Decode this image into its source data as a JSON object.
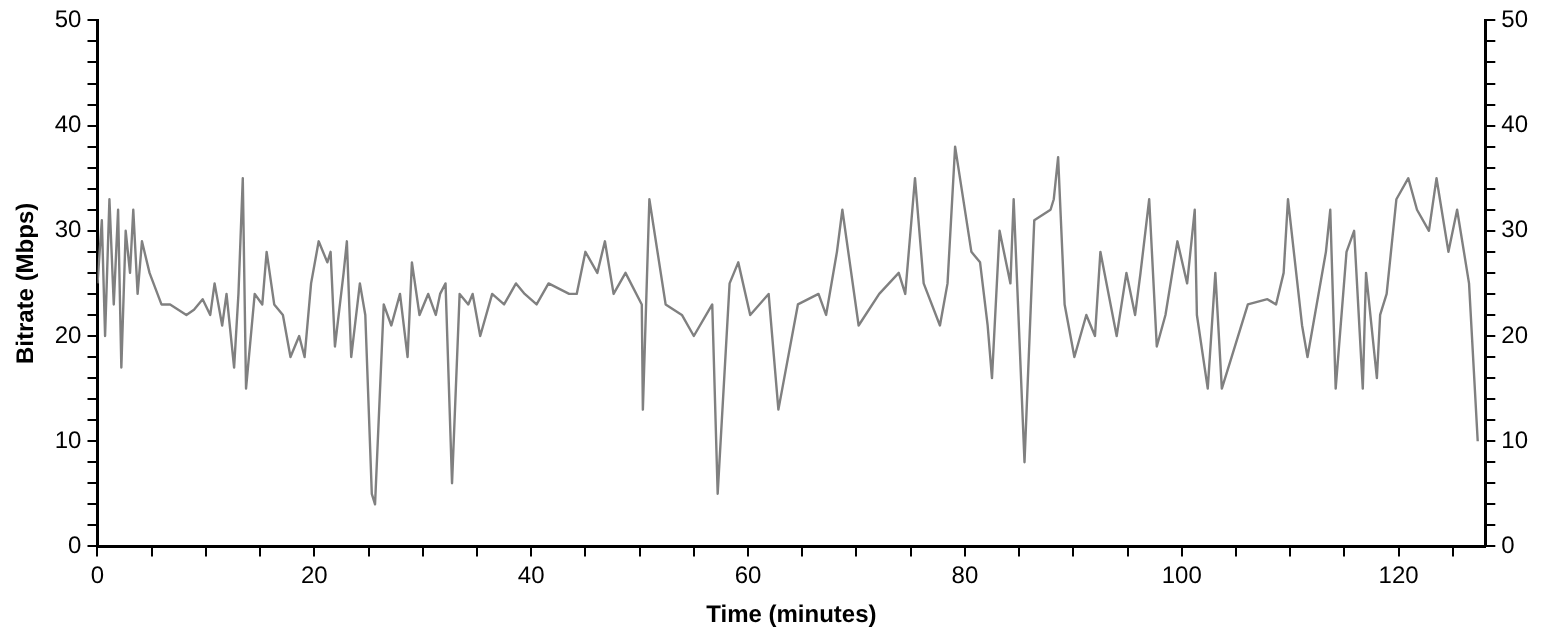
{
  "chart_data": {
    "type": "line",
    "xlabel": "Time (minutes)",
    "ylabel": "Bitrate (Mbps)",
    "marker": "none",
    "grid": false,
    "legend": false,
    "xlim": [
      0,
      128
    ],
    "ylim": [
      0,
      50
    ],
    "y2lim": [
      0,
      50
    ],
    "xticks": [
      0,
      {
        "value": 5,
        "label": null
      },
      {
        "value": 10,
        "label": null
      },
      {
        "value": 15,
        "label": null
      },
      20,
      {
        "value": 25,
        "label": null
      },
      {
        "value": 30,
        "label": null
      },
      {
        "value": 35,
        "label": null
      },
      40,
      {
        "value": 45,
        "label": null
      },
      {
        "value": 50,
        "label": null
      },
      {
        "value": 55,
        "label": null
      },
      60,
      {
        "value": 65,
        "label": null
      },
      {
        "value": 70,
        "label": null
      },
      {
        "value": 75,
        "label": null
      },
      80,
      {
        "value": 85,
        "label": null
      },
      {
        "value": 90,
        "label": null
      },
      {
        "value": 95,
        "label": null
      },
      100,
      {
        "value": 105,
        "label": null
      },
      {
        "value": 110,
        "label": null
      },
      {
        "value": 115,
        "label": null
      },
      120,
      {
        "value": 125,
        "label": null
      }
    ],
    "yticks": [
      0,
      {
        "value": 2,
        "label": null
      },
      {
        "value": 4,
        "label": null
      },
      {
        "value": 6,
        "label": null
      },
      {
        "value": 8,
        "label": null
      },
      10,
      {
        "value": 12,
        "label": null
      },
      {
        "value": 14,
        "label": null
      },
      {
        "value": 16,
        "label": null
      },
      {
        "value": 18,
        "label": null
      },
      20,
      {
        "value": 22,
        "label": null
      },
      {
        "value": 24,
        "label": null
      },
      {
        "value": 26,
        "label": null
      },
      {
        "value": 28,
        "label": null
      },
      30,
      {
        "value": 32,
        "label": null
      },
      {
        "value": 34,
        "label": null
      },
      {
        "value": 36,
        "label": null
      },
      {
        "value": 38,
        "label": null
      },
      40,
      {
        "value": 42,
        "label": null
      },
      {
        "value": 44,
        "label": null
      },
      {
        "value": 46,
        "label": null
      },
      {
        "value": 48,
        "label": null
      },
      50
    ],
    "y2ticks": [
      0,
      {
        "value": 2,
        "label": null
      },
      {
        "value": 4,
        "label": null
      },
      {
        "value": 6,
        "label": null
      },
      {
        "value": 8,
        "label": null
      },
      10,
      {
        "value": 12,
        "label": null
      },
      {
        "value": 14,
        "label": null
      },
      {
        "value": 16,
        "label": null
      },
      {
        "value": 18,
        "label": null
      },
      20,
      {
        "value": 22,
        "label": null
      },
      {
        "value": 24,
        "label": null
      },
      {
        "value": 26,
        "label": null
      },
      {
        "value": 28,
        "label": null
      },
      30,
      {
        "value": 32,
        "label": null
      },
      {
        "value": 34,
        "label": null
      },
      {
        "value": 36,
        "label": null
      },
      {
        "value": 38,
        "label": null
      },
      40,
      {
        "value": 42,
        "label": null
      },
      {
        "value": 44,
        "label": null
      },
      {
        "value": 46,
        "label": null
      },
      {
        "value": 48,
        "label": null
      },
      50
    ],
    "series": [
      {
        "color": "#808080",
        "x": [
          0,
          0.4,
          0.7,
          1.1,
          1.5,
          1.9,
          2.2,
          2.6,
          3.0,
          3.3,
          3.7,
          4.1,
          4.8,
          5.9,
          6.7,
          8.2,
          8.9,
          9.7,
          10.4,
          10.8,
          11.5,
          11.9,
          12.6,
          13.0,
          13.4,
          13.7,
          14.5,
          15.2,
          15.6,
          16.3,
          17.1,
          17.8,
          18.6,
          19.1,
          19.7,
          20.4,
          21.2,
          21.5,
          21.9,
          22.7,
          23.0,
          23.4,
          24.2,
          24.7,
          25.3,
          25.6,
          26.4,
          27.1,
          27.9,
          28.6,
          29.0,
          29.7,
          30.5,
          31.2,
          31.6,
          32.1,
          32.7,
          33.4,
          34.2,
          34.6,
          35.3,
          36.4,
          37.5,
          38.6,
          39.4,
          40.5,
          41.6,
          43.5,
          44.2,
          45.0,
          46.1,
          46.8,
          47.6,
          48.7,
          50.2,
          50.3,
          50.9,
          52.4,
          53.9,
          55.0,
          56.7,
          57.2,
          58.3,
          59.1,
          60.2,
          61.9,
          62.8,
          64.6,
          66.5,
          67.2,
          68.2,
          68.7,
          70.2,
          72.1,
          73.9,
          74.5,
          75.4,
          76.2,
          77.7,
          78.4,
          79.1,
          80.6,
          81.4,
          82.1,
          82.5,
          83.2,
          84.2,
          84.5,
          84.9,
          85.5,
          86.4,
          87.9,
          88.2,
          88.6,
          89.2,
          90.1,
          91.2,
          92.0,
          92.5,
          94.0,
          94.9,
          95.7,
          96.2,
          97.0,
          97.7,
          98.5,
          99.6,
          100.5,
          101.2,
          101.4,
          102.4,
          103.1,
          103.7,
          104.6,
          106.1,
          107.9,
          108.7,
          109.4,
          109.8,
          111.1,
          111.6,
          113.3,
          113.7,
          114.2,
          115.2,
          115.9,
          116.7,
          117.0,
          118.0,
          118.3,
          118.9,
          119.8,
          120.9,
          121.7,
          122.8,
          123.5,
          124.6,
          125.4,
          126.5,
          127.3
        ],
        "values": [
          25,
          31,
          20,
          33,
          23,
          32,
          17,
          30,
          26,
          32,
          24,
          29,
          26,
          23,
          23,
          22,
          22.5,
          23.5,
          22,
          25,
          21,
          24,
          17,
          24,
          35,
          15,
          24,
          23,
          28,
          23,
          22,
          18,
          20,
          18,
          25,
          29,
          27,
          28,
          19,
          26,
          29,
          18,
          25,
          22,
          5,
          4,
          23,
          21,
          24,
          18,
          27,
          22,
          24,
          22,
          24,
          25,
          6,
          24,
          23,
          24,
          20,
          24,
          23,
          25,
          24,
          23,
          25,
          24,
          24,
          28,
          26,
          29,
          24,
          26,
          23,
          13,
          33,
          23,
          22,
          20,
          23,
          5,
          25,
          27,
          22,
          24,
          13,
          23,
          24,
          22,
          28,
          32,
          21,
          24,
          26,
          24,
          35,
          25,
          21,
          25,
          38,
          28,
          27,
          21,
          16,
          30,
          25,
          33,
          23,
          8,
          31,
          32,
          33,
          37,
          23,
          18,
          22,
          20,
          28,
          20,
          26,
          22,
          26,
          33,
          19,
          22,
          29,
          25,
          32,
          22,
          15,
          26,
          15,
          18,
          23,
          23.5,
          23,
          26,
          33,
          21,
          18,
          28,
          32,
          15,
          28,
          30,
          15,
          26,
          16,
          22,
          24,
          33,
          35,
          32,
          30,
          35,
          28,
          32,
          25,
          10
        ]
      }
    ]
  }
}
